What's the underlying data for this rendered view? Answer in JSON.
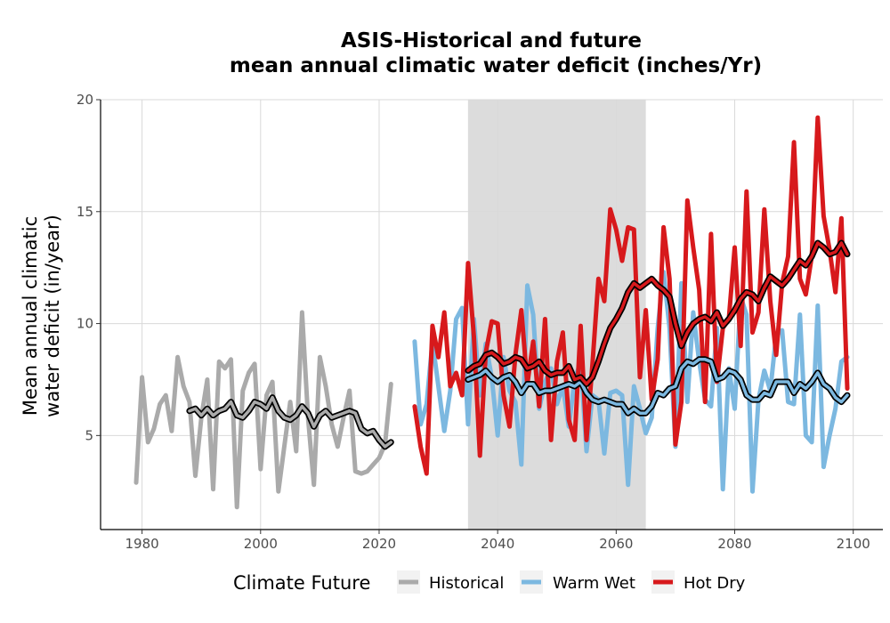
{
  "chart_data": {
    "type": "line",
    "title": "ASIS-Historical and future",
    "subtitle": "mean annual climatic water deficit (inches/Yr)",
    "xlabel": "",
    "ylabel_line1": "Mean annual climatic",
    "ylabel_line2": "water deficit (in/year)",
    "xlim": [
      1973,
      2105
    ],
    "ylim": [
      0.8,
      20
    ],
    "xticks": [
      1980,
      2000,
      2020,
      2040,
      2060,
      2080,
      2100
    ],
    "yticks": [
      5,
      10,
      15,
      20
    ],
    "grid": true,
    "reference_period": [
      2035,
      2065
    ],
    "legend": {
      "title": "Climate Future",
      "placement": "bottom",
      "entries": [
        "Historical",
        "Warm Wet",
        "Hot Dry"
      ]
    },
    "colors": {
      "Historical": "#aaaaaa",
      "Warm Wet": "#7cb8e0",
      "Hot Dry": "#d7191c",
      "smooth": "#000000",
      "reference_band": "#dcdcdc"
    },
    "series": [
      {
        "name": "Historical",
        "x": [
          1979,
          1980,
          1981,
          1982,
          1983,
          1984,
          1985,
          1986,
          1987,
          1988,
          1989,
          1990,
          1991,
          1992,
          1993,
          1994,
          1995,
          1996,
          1997,
          1998,
          1999,
          2000,
          2001,
          2002,
          2003,
          2004,
          2005,
          2006,
          2007,
          2008,
          2009,
          2010,
          2011,
          2012,
          2013,
          2014,
          2015,
          2016,
          2017,
          2018,
          2019,
          2020,
          2021,
          2022
        ],
        "values": [
          2.9,
          7.6,
          4.7,
          5.3,
          6.4,
          6.8,
          5.2,
          8.5,
          7.2,
          6.5,
          3.2,
          5.8,
          7.5,
          2.6,
          8.3,
          8.0,
          8.4,
          1.8,
          7.0,
          7.8,
          8.2,
          3.5,
          6.8,
          7.4,
          2.5,
          4.5,
          6.5,
          4.3,
          10.5,
          5.8,
          2.8,
          8.5,
          7.2,
          5.5,
          4.5,
          5.8,
          7.0,
          3.4,
          3.3,
          3.4,
          3.7,
          4.0,
          4.6,
          7.3
        ]
      },
      {
        "name": "Historical smoothed",
        "x": [
          1988,
          1989,
          1990,
          1991,
          1992,
          1993,
          1994,
          1995,
          1996,
          1997,
          1998,
          1999,
          2000,
          2001,
          2002,
          2003,
          2004,
          2005,
          2006,
          2007,
          2008,
          2009,
          2010,
          2011,
          2012,
          2013,
          2014,
          2015,
          2016,
          2017,
          2018,
          2019,
          2020,
          2021,
          2022
        ],
        "values": [
          6.1,
          6.2,
          5.9,
          6.2,
          5.9,
          6.1,
          6.2,
          6.5,
          5.9,
          5.8,
          6.1,
          6.5,
          6.4,
          6.2,
          6.7,
          6.1,
          5.8,
          5.7,
          5.9,
          6.3,
          6.0,
          5.4,
          5.9,
          6.1,
          5.8,
          5.9,
          6.0,
          6.1,
          6.0,
          5.3,
          5.1,
          5.2,
          4.8,
          4.5,
          4.7
        ]
      },
      {
        "name": "Warm Wet",
        "x": [
          2026,
          2027,
          2028,
          2029,
          2030,
          2031,
          2032,
          2033,
          2034,
          2035,
          2036,
          2037,
          2038,
          2039,
          2040,
          2041,
          2042,
          2043,
          2044,
          2045,
          2046,
          2047,
          2048,
          2049,
          2050,
          2051,
          2052,
          2053,
          2054,
          2055,
          2056,
          2057,
          2058,
          2059,
          2060,
          2061,
          2062,
          2063,
          2064,
          2065,
          2066,
          2067,
          2068,
          2069,
          2070,
          2071,
          2072,
          2073,
          2074,
          2075,
          2076,
          2077,
          2078,
          2079,
          2080,
          2081,
          2082,
          2083,
          2084,
          2085,
          2086,
          2087,
          2088,
          2089,
          2090,
          2091,
          2092,
          2093,
          2094,
          2095,
          2096,
          2097,
          2098,
          2099
        ],
        "values": [
          9.2,
          5.5,
          6.4,
          9.2,
          7.2,
          5.2,
          7.0,
          10.2,
          10.7,
          5.5,
          10.2,
          6.8,
          9.1,
          7.6,
          5.0,
          8.5,
          7.0,
          6.5,
          3.7,
          11.7,
          10.4,
          6.2,
          7.4,
          8.0,
          6.4,
          7.2,
          5.4,
          7.5,
          8.3,
          4.3,
          6.8,
          6.6,
          4.2,
          6.9,
          7.0,
          6.8,
          2.8,
          7.2,
          6.2,
          5.1,
          5.8,
          9.8,
          12.3,
          9.8,
          4.5,
          11.8,
          6.5,
          10.5,
          8.3,
          6.6,
          6.3,
          9.8,
          2.6,
          8.0,
          6.2,
          11.2,
          10.4,
          2.5,
          6.6,
          7.9,
          7.0,
          9.5,
          9.7,
          6.5,
          6.4,
          10.4,
          5.0,
          4.7,
          10.8,
          3.6,
          5.0,
          6.2,
          8.3,
          8.5
        ]
      },
      {
        "name": "Warm Wet smoothed",
        "x": [
          2035,
          2036,
          2037,
          2038,
          2039,
          2040,
          2041,
          2042,
          2043,
          2044,
          2045,
          2046,
          2047,
          2048,
          2049,
          2050,
          2051,
          2052,
          2053,
          2054,
          2055,
          2056,
          2057,
          2058,
          2059,
          2060,
          2061,
          2062,
          2063,
          2064,
          2065,
          2066,
          2067,
          2068,
          2069,
          2070,
          2071,
          2072,
          2073,
          2074,
          2075,
          2076,
          2077,
          2078,
          2079,
          2080,
          2081,
          2082,
          2083,
          2084,
          2085,
          2086,
          2087,
          2088,
          2089,
          2090,
          2091,
          2092,
          2093,
          2094,
          2095,
          2096,
          2097,
          2098,
          2099
        ],
        "values": [
          7.5,
          7.6,
          7.7,
          7.9,
          7.6,
          7.4,
          7.6,
          7.7,
          7.4,
          6.9,
          7.3,
          7.3,
          6.9,
          7.0,
          7.0,
          7.1,
          7.2,
          7.3,
          7.2,
          7.4,
          6.9,
          6.6,
          6.5,
          6.6,
          6.5,
          6.4,
          6.4,
          6.0,
          6.2,
          6.0,
          6.0,
          6.3,
          6.9,
          6.8,
          7.1,
          7.2,
          8.0,
          8.3,
          8.2,
          8.4,
          8.4,
          8.3,
          7.5,
          7.6,
          7.9,
          7.8,
          7.5,
          6.8,
          6.6,
          6.6,
          6.9,
          6.8,
          7.4,
          7.4,
          7.4,
          6.9,
          7.3,
          7.1,
          7.4,
          7.8,
          7.3,
          7.1,
          6.7,
          6.5,
          6.8
        ]
      },
      {
        "name": "Hot Dry",
        "x": [
          2026,
          2027,
          2028,
          2029,
          2030,
          2031,
          2032,
          2033,
          2034,
          2035,
          2036,
          2037,
          2038,
          2039,
          2040,
          2041,
          2042,
          2043,
          2044,
          2045,
          2046,
          2047,
          2048,
          2049,
          2050,
          2051,
          2052,
          2053,
          2054,
          2055,
          2056,
          2057,
          2058,
          2059,
          2060,
          2061,
          2062,
          2063,
          2064,
          2065,
          2066,
          2067,
          2068,
          2069,
          2070,
          2071,
          2072,
          2073,
          2074,
          2075,
          2076,
          2077,
          2078,
          2079,
          2080,
          2081,
          2082,
          2083,
          2084,
          2085,
          2086,
          2087,
          2088,
          2089,
          2090,
          2091,
          2092,
          2093,
          2094,
          2095,
          2096,
          2097,
          2098,
          2099
        ],
        "values": [
          6.3,
          4.5,
          3.3,
          9.9,
          8.5,
          10.5,
          7.2,
          7.8,
          6.8,
          12.7,
          9.4,
          4.1,
          8.7,
          10.1,
          10.0,
          6.8,
          5.4,
          8.6,
          10.6,
          7.3,
          9.2,
          6.3,
          10.2,
          4.8,
          8.3,
          9.6,
          5.7,
          4.8,
          9.9,
          4.8,
          8.2,
          12.0,
          11.0,
          15.1,
          14.2,
          12.8,
          14.3,
          14.2,
          7.6,
          10.6,
          6.6,
          8.4,
          14.3,
          12.0,
          4.6,
          6.5,
          15.5,
          13.4,
          11.5,
          6.5,
          14.0,
          7.4,
          9.8,
          10.2,
          13.4,
          9.0,
          15.9,
          9.6,
          10.5,
          15.1,
          11.0,
          8.6,
          11.8,
          13.0,
          18.1,
          12.0,
          11.3,
          13.0,
          19.2,
          14.8,
          13.3,
          11.4,
          14.7,
          7.1
        ]
      },
      {
        "name": "Hot Dry smoothed",
        "x": [
          2035,
          2036,
          2037,
          2038,
          2039,
          2040,
          2041,
          2042,
          2043,
          2044,
          2045,
          2046,
          2047,
          2048,
          2049,
          2050,
          2051,
          2052,
          2053,
          2054,
          2055,
          2056,
          2057,
          2058,
          2059,
          2060,
          2061,
          2062,
          2063,
          2064,
          2065,
          2066,
          2067,
          2068,
          2069,
          2070,
          2071,
          2072,
          2073,
          2074,
          2075,
          2076,
          2077,
          2078,
          2079,
          2080,
          2081,
          2082,
          2083,
          2084,
          2085,
          2086,
          2087,
          2088,
          2089,
          2090,
          2091,
          2092,
          2093,
          2094,
          2095,
          2096,
          2097,
          2098,
          2099
        ],
        "values": [
          7.9,
          8.1,
          8.2,
          8.6,
          8.7,
          8.5,
          8.2,
          8.3,
          8.5,
          8.4,
          8.0,
          8.1,
          8.3,
          7.9,
          7.7,
          7.8,
          7.8,
          8.1,
          7.5,
          7.6,
          7.3,
          7.6,
          8.3,
          9.1,
          9.8,
          10.2,
          10.7,
          11.4,
          11.8,
          11.6,
          11.8,
          12.0,
          11.7,
          11.5,
          11.2,
          10.0,
          9.0,
          9.6,
          10.0,
          10.2,
          10.3,
          10.1,
          10.5,
          9.9,
          10.2,
          10.6,
          11.1,
          11.4,
          11.3,
          11.0,
          11.6,
          12.1,
          11.9,
          11.7,
          12.0,
          12.4,
          12.8,
          12.6,
          13.0,
          13.6,
          13.4,
          13.1,
          13.2,
          13.6,
          13.1
        ]
      }
    ]
  }
}
